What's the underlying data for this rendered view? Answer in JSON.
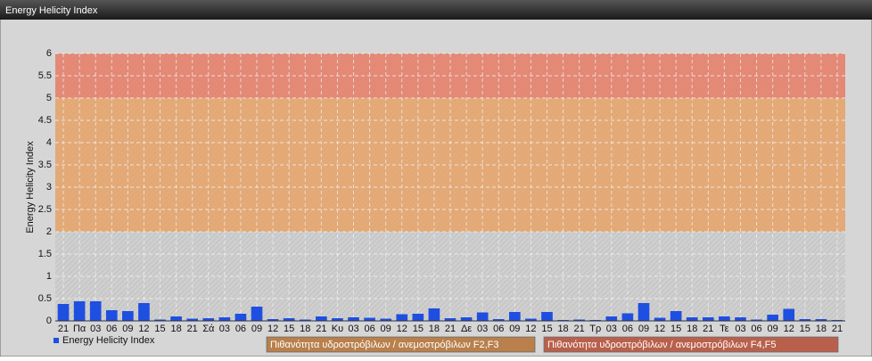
{
  "window_title": "Energy Helicity Index",
  "chart_data": {
    "type": "bar",
    "y_label": "Energy Helicity Index",
    "categories": [
      "21",
      "Πα",
      "03",
      "06",
      "09",
      "12",
      "15",
      "18",
      "21",
      "Σά",
      "03",
      "06",
      "09",
      "12",
      "15",
      "18",
      "21",
      "Κυ",
      "03",
      "06",
      "09",
      "12",
      "15",
      "18",
      "21",
      "Δε",
      "03",
      "06",
      "09",
      "12",
      "15",
      "18",
      "21",
      "Τρ",
      "03",
      "06",
      "09",
      "12",
      "15",
      "18",
      "21",
      "Τε",
      "03",
      "06",
      "09",
      "12",
      "15",
      "18",
      "21"
    ],
    "series": [
      {
        "name": "Energy Helicity Index",
        "color": "#1f4fe0",
        "values": [
          0.38,
          0.44,
          0.44,
          0.24,
          0.22,
          0.4,
          0.03,
          0.1,
          0.05,
          0.06,
          0.08,
          0.16,
          0.32,
          0.04,
          0.06,
          0.03,
          0.1,
          0.06,
          0.08,
          0.07,
          0.05,
          0.15,
          0.16,
          0.28,
          0.06,
          0.08,
          0.19,
          0.04,
          0.2,
          0.05,
          0.2,
          0.02,
          0.03,
          0.02,
          0.1,
          0.17,
          0.4,
          0.07,
          0.22,
          0.08,
          0.08,
          0.1,
          0.08,
          0.03,
          0.14,
          0.27,
          0.04,
          0.04,
          0.02
        ]
      }
    ],
    "bands": [
      {
        "from": 2,
        "to": 5,
        "color": "#e8a060",
        "label": "Πιθανότητα υδροστρόβιλων / ανεμοστρόβιλων F2,F3"
      },
      {
        "from": 5,
        "to": 6,
        "color": "#e87860",
        "label": "Πιθανότητα υδροστρόβιλων / ανεμοστρόβιλων F4,F5"
      }
    ],
    "ylim": [
      0,
      6
    ],
    "yticks": [
      0,
      0.5,
      1,
      1.5,
      2,
      2.5,
      3,
      3.5,
      4,
      4.5,
      5,
      5.5,
      6
    ],
    "grid": true
  }
}
